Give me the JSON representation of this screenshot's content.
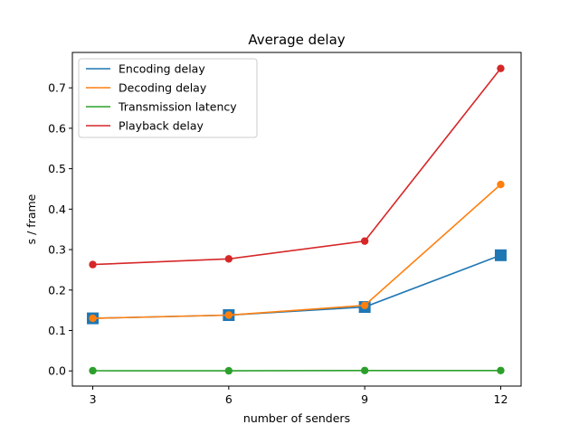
{
  "chart_data": {
    "type": "line",
    "title": "Average delay",
    "xlabel": "number of senders",
    "ylabel": "s / frame",
    "x": [
      3,
      6,
      9,
      12
    ],
    "xticks": [
      "3",
      "6",
      "9",
      "12"
    ],
    "xlim": [
      2.55,
      12.45
    ],
    "ylim": [
      -0.0375,
      0.7875
    ],
    "yticks": [
      0.0,
      0.1,
      0.2,
      0.3,
      0.4,
      0.5,
      0.6,
      0.7
    ],
    "ytick_labels": [
      "0.0",
      "0.1",
      "0.2",
      "0.3",
      "0.4",
      "0.5",
      "0.6",
      "0.7"
    ],
    "grid": false,
    "legend_position": "top-left",
    "series": [
      {
        "name": "Encoding delay",
        "color": "#1f77b4",
        "marker": "square",
        "values": [
          0.13,
          0.138,
          0.158,
          0.286
        ]
      },
      {
        "name": "Decoding delay",
        "color": "#ff7f0e",
        "marker": "circle",
        "values": [
          0.13,
          0.138,
          0.162,
          0.461
        ]
      },
      {
        "name": "Transmission latency",
        "color": "#2ca02c",
        "marker": "circle",
        "values": [
          0.0005,
          0.0003,
          0.001,
          0.001
        ]
      },
      {
        "name": "Playback delay",
        "color": "#d62728",
        "marker": "circle",
        "values": [
          0.263,
          0.277,
          0.321,
          0.748
        ]
      }
    ]
  }
}
